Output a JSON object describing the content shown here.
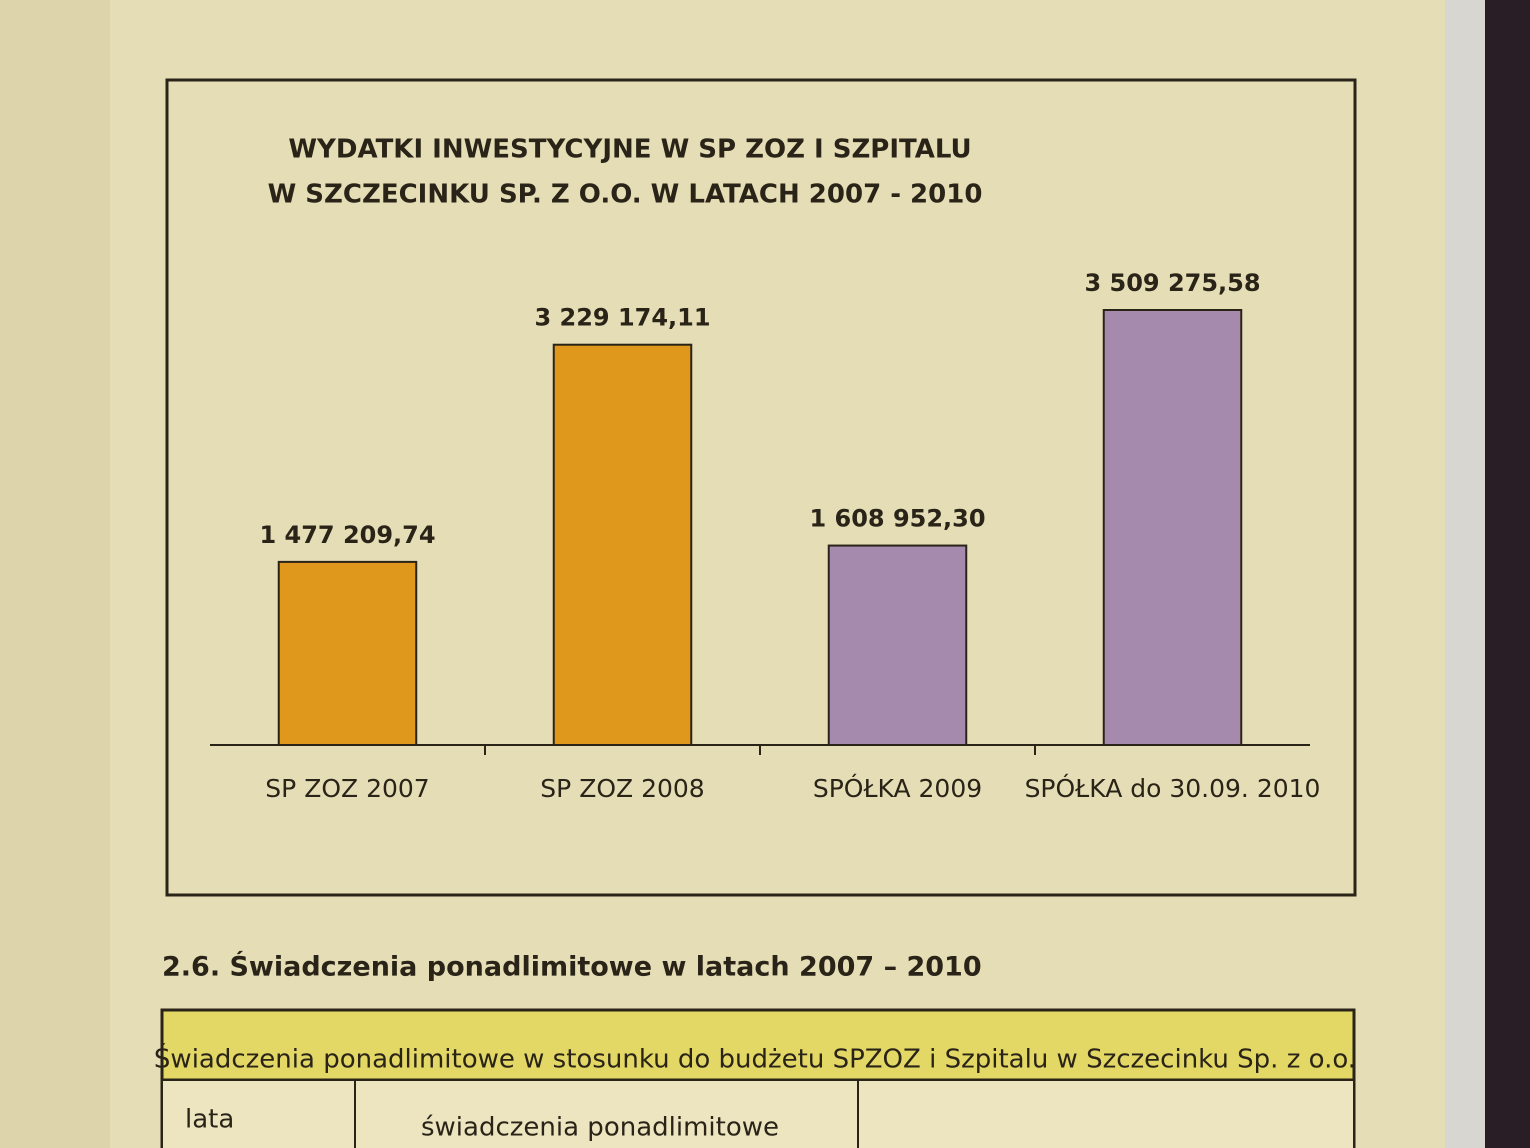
{
  "chart_data": {
    "type": "bar",
    "title": [
      "WYDATKI INWESTYCYJNE W SP ZOZ I SZPITALU",
      "W SZCZECINKU SP. Z O.O. W LATACH 2007 -  2010"
    ],
    "categories": [
      "SP ZOZ 2007",
      "SP ZOZ 2008",
      "SPÓŁKA 2009",
      "SPÓŁKA do 30.09.  2010"
    ],
    "values": [
      1477209.74,
      3229174.11,
      1608952.3,
      3509275.58
    ],
    "value_labels": [
      "1 477 209,74",
      "3 229 174,11",
      "1 608 952,30",
      "3 509 275,58"
    ],
    "colors": [
      "#e0981c",
      "#e0981c",
      "#a68aae",
      "#a68aae"
    ]
  },
  "section": {
    "heading": "2.6. Świadczenia ponadlimitowe w latach 2007 – 2010"
  },
  "table": {
    "caption": "Świadczenia ponadlimitowe w stosunku do budżetu SPZOZ i Szpitalu w Szczecinku Sp. z o.o.",
    "columns": [
      "lata",
      "świadczenia ponadlimitowe"
    ]
  }
}
